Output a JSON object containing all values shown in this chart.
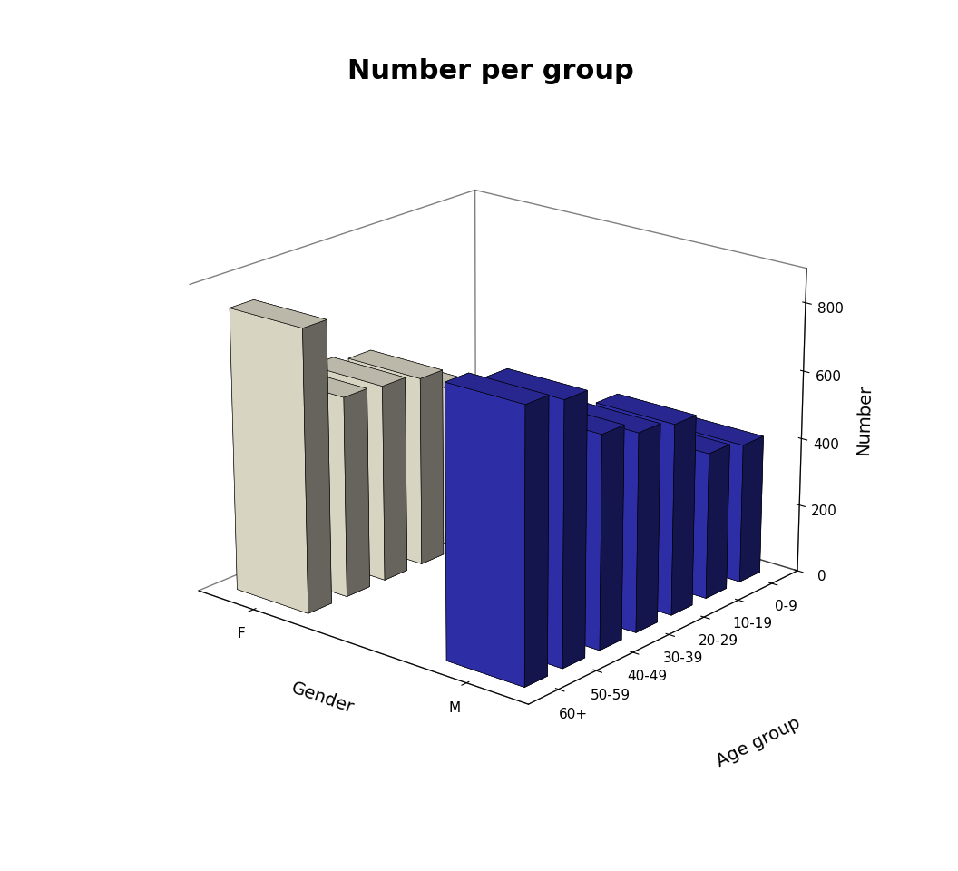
{
  "title": "Number per group",
  "xlabel": "Gender",
  "ylabel": "Age group",
  "zlabel": "Number",
  "age_groups": [
    "60+",
    "50-59",
    "40-49",
    "30-39",
    "20-29",
    "10-19",
    "0-9"
  ],
  "genders": [
    "F",
    "M"
  ],
  "values": {
    "F": [
      830,
      590,
      580,
      560,
      480,
      300,
      310
    ],
    "M": [
      790,
      760,
      620,
      580,
      560,
      430,
      410
    ]
  },
  "bar_color_F": "#F5F0DC",
  "bar_color_M": "#3333BB",
  "bar_edge_color": "#000000",
  "background_color": "#ffffff",
  "title_fontsize": 22,
  "axis_label_fontsize": 14,
  "tick_fontsize": 11,
  "zlim": [
    0,
    900
  ],
  "zticks": [
    0,
    200,
    400,
    600,
    800
  ],
  "elev": 20,
  "azim": -50
}
